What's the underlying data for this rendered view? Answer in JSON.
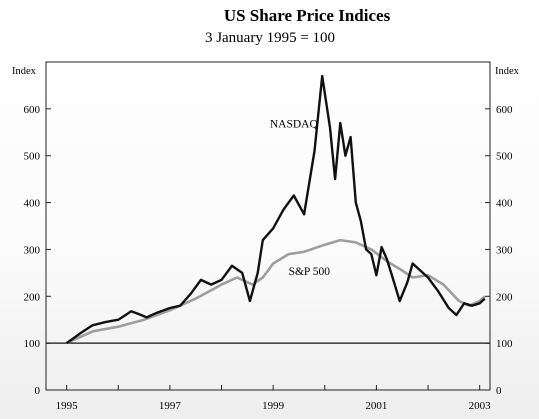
{
  "chart_data": {
    "type": "line",
    "title": "US Share Price Indices",
    "subtitle": "3 January 1995 = 100",
    "ylabel_left": "Index",
    "ylabel_right": "Index",
    "ylim": [
      0,
      700
    ],
    "xlim": [
      1994.6,
      2003.2
    ],
    "y_ticks": [
      0,
      100,
      200,
      300,
      400,
      500,
      600
    ],
    "y_tick_labels": [
      "0",
      "100",
      "200",
      "300",
      "400",
      "500",
      "600"
    ],
    "x_ticks": [
      1995,
      1997,
      1999,
      2001,
      2003
    ],
    "x_tick_labels": [
      "1995",
      "1997",
      "1999",
      "2001",
      "2003"
    ],
    "reference_line": 100,
    "grid": false,
    "legend": "none",
    "series": [
      {
        "name": "NASDAQ",
        "color": "#111111",
        "x": [
          1995.0,
          1995.25,
          1995.5,
          1995.75,
          1996.0,
          1996.25,
          1996.4,
          1996.55,
          1996.75,
          1997.0,
          1997.2,
          1997.4,
          1997.6,
          1997.8,
          1998.0,
          1998.2,
          1998.4,
          1998.55,
          1998.7,
          1998.8,
          1999.0,
          1999.2,
          1999.4,
          1999.6,
          1999.8,
          1999.95,
          2000.1,
          2000.2,
          2000.3,
          2000.4,
          2000.5,
          2000.6,
          2000.7,
          2000.8,
          2000.9,
          2001.0,
          2001.1,
          2001.2,
          2001.3,
          2001.45,
          2001.6,
          2001.7,
          2001.85,
          2002.0,
          2002.2,
          2002.4,
          2002.55,
          2002.7,
          2002.85,
          2003.0,
          2003.1
        ],
        "values": [
          100,
          120,
          138,
          145,
          150,
          168,
          162,
          155,
          165,
          175,
          180,
          205,
          235,
          225,
          235,
          265,
          250,
          190,
          250,
          320,
          345,
          385,
          415,
          375,
          510,
          670,
          560,
          450,
          570,
          500,
          540,
          400,
          360,
          300,
          290,
          245,
          305,
          280,
          245,
          190,
          230,
          270,
          255,
          240,
          210,
          175,
          160,
          185,
          180,
          185,
          195
        ]
      },
      {
        "name": "S&P 500",
        "color": "#9d9d9d",
        "x": [
          1995.0,
          1995.5,
          1996.0,
          1996.5,
          1997.0,
          1997.5,
          1998.0,
          1998.3,
          1998.6,
          1998.8,
          1999.0,
          1999.3,
          1999.6,
          2000.0,
          2000.3,
          2000.6,
          2000.9,
          2001.2,
          2001.5,
          2001.7,
          2002.0,
          2002.3,
          2002.6,
          2002.8,
          2003.0,
          2003.1
        ],
        "values": [
          100,
          125,
          135,
          150,
          170,
          195,
          225,
          240,
          225,
          240,
          270,
          290,
          295,
          310,
          320,
          315,
          300,
          275,
          255,
          240,
          245,
          225,
          190,
          180,
          190,
          200
        ]
      }
    ],
    "annotations": [
      {
        "text": "NASDAQ",
        "x": 1999.4,
        "y": 560
      },
      {
        "text": "S&P 500",
        "x": 1999.7,
        "y": 245
      }
    ]
  }
}
